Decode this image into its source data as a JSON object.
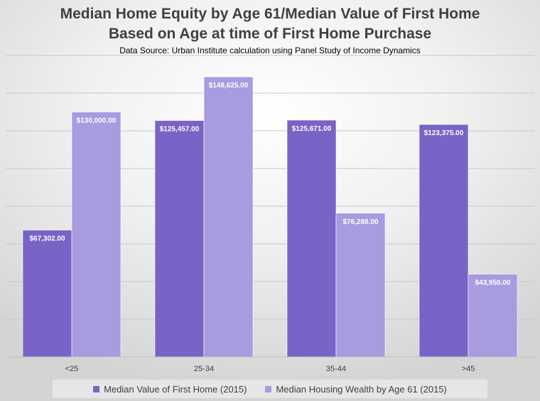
{
  "chart_data": {
    "type": "bar",
    "title": "Median Home Equity by Age 61/Median Value of First Home",
    "subtitle_line2": "Based on Age at time of First Home Purchase",
    "source": "Data Source: Urban Institute calculation using Panel Study of Income Dynamics",
    "categories": [
      "<25",
      "25-34",
      "35-44",
      ">45"
    ],
    "series": [
      {
        "name": "Median Value of First Home (2015)",
        "color": "#7a63c6",
        "values": [
          67302,
          125457,
          125671,
          123375
        ],
        "labels": [
          "$67,302.00",
          "$125,457.00",
          "$125,671.00",
          "$123,375.00"
        ]
      },
      {
        "name": "Median Housing Wealth by Age 61 (2015)",
        "color": "#a89be0",
        "values": [
          130000,
          148625,
          76288,
          43950
        ],
        "labels": [
          "$130,000.00",
          "$148,625.00",
          "$76,288.00",
          "$43,950.00"
        ]
      }
    ],
    "ylim": [
      0,
      160000
    ],
    "grid": true,
    "legend_position": "bottom"
  }
}
